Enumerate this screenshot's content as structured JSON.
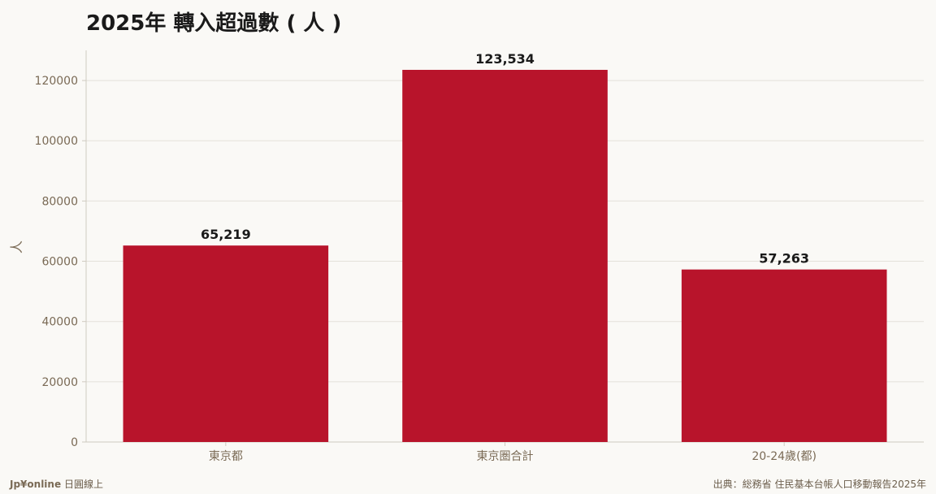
{
  "colors": {
    "bar": "#b8142b",
    "grid": "#e4e1da",
    "axis": "#cfcac0",
    "tick_text": "#7a6a55",
    "title_text": "#1a1a1a",
    "label_text": "#1a1a1a",
    "background": "#faf9f6"
  },
  "footer": {
    "brand": "Jp¥online",
    "brand_sub": "日圓線上",
    "source": "出典：総務省 住民基本台帳人口移動報告2025年"
  },
  "chart_data": {
    "type": "bar",
    "title": "2025年 轉入超過數 ( 人 )",
    "xlabel": "",
    "ylabel": "人",
    "categories": [
      "東京都",
      "東京圏合計",
      "20-24歲(都)"
    ],
    "values": [
      65219,
      123534,
      57263
    ],
    "value_labels": [
      "65,219",
      "123,534",
      "57,263"
    ],
    "ylim": [
      0,
      130000
    ],
    "yticks": [
      0,
      20000,
      40000,
      60000,
      80000,
      100000,
      120000
    ],
    "ytick_labels": [
      "0",
      "20000",
      "40000",
      "60000",
      "80000",
      "100000",
      "120000"
    ],
    "grid": true,
    "legend": "none"
  }
}
